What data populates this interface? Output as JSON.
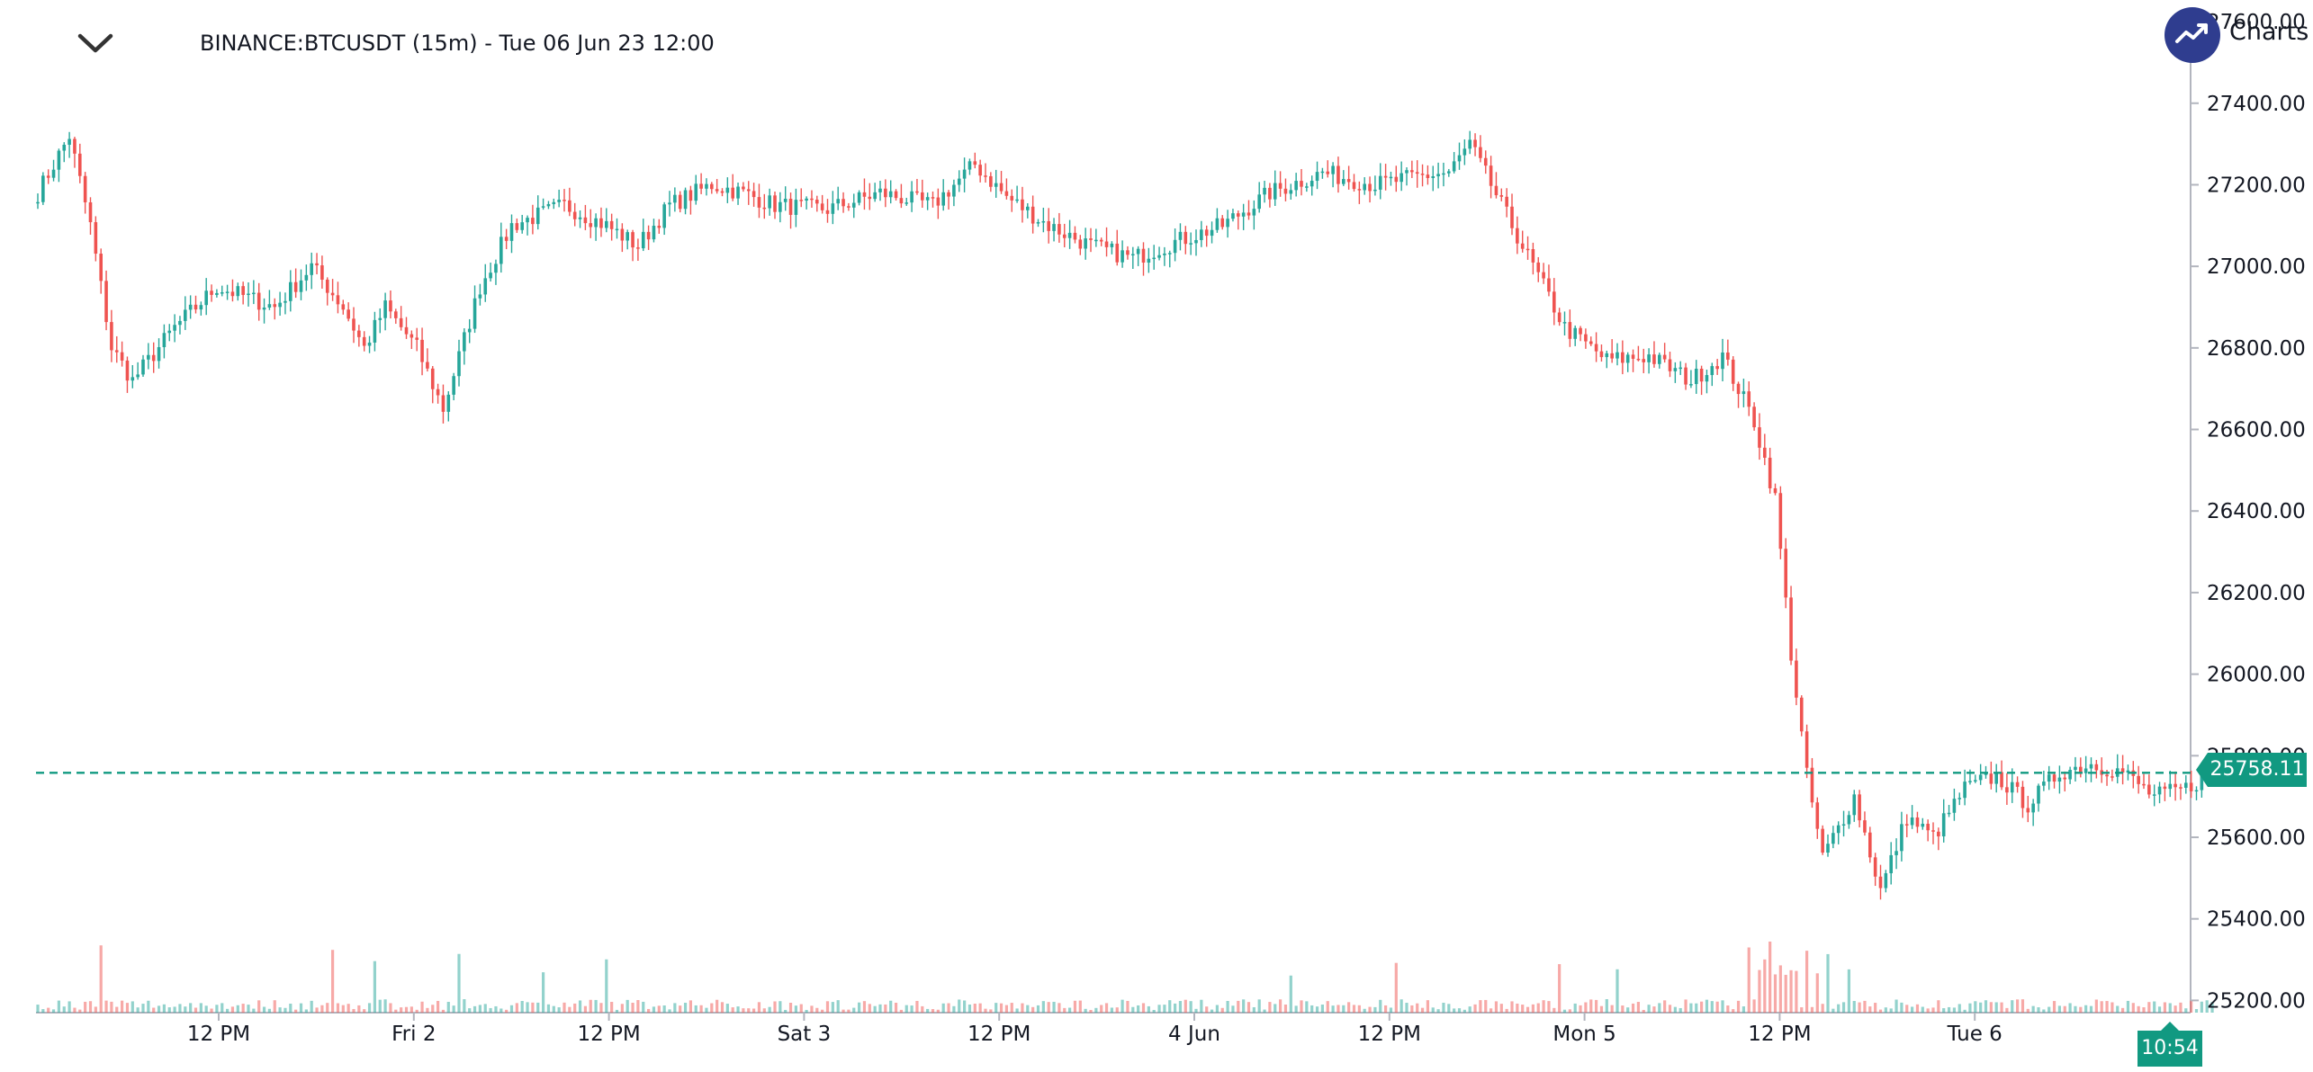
{
  "header": {
    "title": "BINANCE:BTCUSDT (15m) - Tue 06 Jun 23 12:00"
  },
  "brand": {
    "label": "Charts |"
  },
  "icons": {
    "collapse": "chevron-down-icon",
    "logo": "trend-line-icon"
  },
  "colors": {
    "up": "#26a69a",
    "down": "#ef5350",
    "price_line": "#119981",
    "logo": "#2f3d8f"
  },
  "chart_data": {
    "type": "candlestick",
    "symbol": "BINANCE:BTCUSDT",
    "interval": "15m",
    "y_axis": {
      "range": [
        25170,
        27620
      ],
      "ticks": [
        "25200.00",
        "25400.00",
        "25600.00",
        "25800.00",
        "26000.00",
        "26200.00",
        "26400.00",
        "26600.00",
        "26800.00",
        "27000.00",
        "27200.00",
        "27400.00",
        "27600.00"
      ]
    },
    "x_axis": {
      "labels": [
        "12 PM",
        "Fri 2",
        "12 PM",
        "Sat 3",
        "12 PM",
        "4 Jun",
        "12 PM",
        "Mon 5",
        "12 PM",
        "Tue 6"
      ]
    },
    "last_price": {
      "value": 25758.11,
      "label": "25758.11"
    },
    "countdown": "10:54",
    "price_path": [
      [
        0,
        27180
      ],
      [
        6,
        27320
      ],
      [
        10,
        27100
      ],
      [
        14,
        26800
      ],
      [
        18,
        26720
      ],
      [
        26,
        26850
      ],
      [
        34,
        26950
      ],
      [
        45,
        26900
      ],
      [
        52,
        27000
      ],
      [
        58,
        26900
      ],
      [
        62,
        26800
      ],
      [
        66,
        26900
      ],
      [
        72,
        26800
      ],
      [
        77,
        26650
      ],
      [
        84,
        26950
      ],
      [
        90,
        27100
      ],
      [
        100,
        27150
      ],
      [
        108,
        27100
      ],
      [
        114,
        27050
      ],
      [
        120,
        27150
      ],
      [
        128,
        27200
      ],
      [
        134,
        27180
      ],
      [
        140,
        27150
      ],
      [
        150,
        27140
      ],
      [
        160,
        27180
      ],
      [
        170,
        27150
      ],
      [
        178,
        27250
      ],
      [
        184,
        27170
      ],
      [
        192,
        27100
      ],
      [
        200,
        27050
      ],
      [
        208,
        27020
      ],
      [
        216,
        27060
      ],
      [
        225,
        27100
      ],
      [
        234,
        27180
      ],
      [
        244,
        27230
      ],
      [
        254,
        27200
      ],
      [
        262,
        27220
      ],
      [
        268,
        27230
      ],
      [
        272,
        27300
      ],
      [
        278,
        27150
      ],
      [
        284,
        27000
      ],
      [
        290,
        26850
      ],
      [
        298,
        26770
      ],
      [
        306,
        26780
      ],
      [
        314,
        26720
      ],
      [
        320,
        26780
      ],
      [
        326,
        26620
      ],
      [
        330,
        26430
      ],
      [
        333,
        26050
      ],
      [
        336,
        25750
      ],
      [
        339,
        25550
      ],
      [
        345,
        25700
      ],
      [
        350,
        25470
      ],
      [
        355,
        25650
      ],
      [
        360,
        25600
      ],
      [
        366,
        25720
      ],
      [
        372,
        25750
      ],
      [
        378,
        25680
      ],
      [
        384,
        25760
      ],
      [
        390,
        25780
      ],
      [
        396,
        25760
      ],
      [
        402,
        25700
      ],
      [
        408,
        25720
      ],
      [
        413,
        25758
      ]
    ],
    "volume_spikes": [
      12,
      56,
      64,
      80,
      96,
      108,
      238,
      258,
      289,
      300,
      325,
      327,
      328,
      329,
      330,
      331,
      332,
      333,
      334,
      336,
      338,
      340,
      344
    ]
  }
}
